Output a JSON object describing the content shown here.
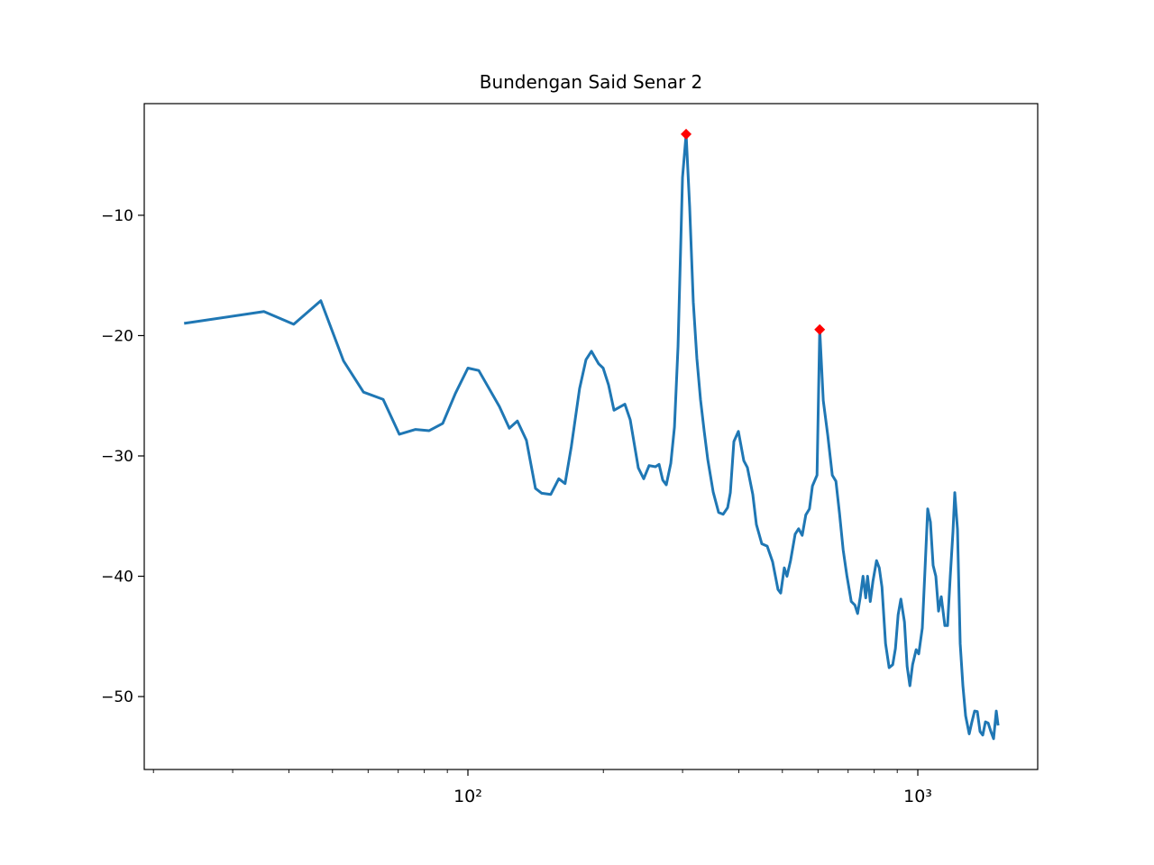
{
  "chart_data": {
    "type": "line",
    "title": "Bundengan Said Senar 2",
    "xscale": "log",
    "xlim": [
      19.08,
      1847
    ],
    "ylim": [
      -56.06,
      -0.72
    ],
    "xticks": [
      {
        "value": 100,
        "label": "10²"
      },
      {
        "value": 1000,
        "label": "10³"
      }
    ],
    "xminorticks": [
      20,
      30,
      40,
      50,
      60,
      70,
      80,
      90,
      200,
      300,
      400,
      500,
      600,
      700,
      800,
      900
    ],
    "yticks": [
      {
        "value": -50,
        "label": "−50"
      },
      {
        "value": -40,
        "label": "−40"
      },
      {
        "value": -30,
        "label": "−30"
      },
      {
        "value": -20,
        "label": "−20"
      },
      {
        "value": -10,
        "label": "−10"
      }
    ],
    "series": [
      {
        "color": "#1f77b4",
        "style": "line",
        "x": [
          23.4,
          35.2,
          41.0,
          47.1,
          52.9,
          58.6,
          64.8,
          70.4,
          76.5,
          82.0,
          87.9,
          93.8,
          100,
          105.7,
          117.5,
          123.6,
          128.8,
          134.9,
          141.3,
          145.9,
          152.8,
          159.2,
          164.4,
          169.8,
          177.1,
          183.0,
          188.2,
          195.3,
          199.8,
          205.4,
          211.2,
          223.3,
          229.5,
          239.2,
          245.9,
          252.8,
          261.1,
          266.0,
          271.0,
          276.0,
          282.5,
          287.8,
          293.1,
          299.9,
          305.5,
          311.1,
          316.9,
          322.8,
          328.8,
          335.0,
          341.3,
          350.9,
          360.8,
          369.2,
          377.8,
          383.1,
          390.1,
          399.2,
          410.4,
          418.0,
          429.7,
          437.7,
          450.0,
          462.6,
          475.6,
          488.9,
          495.7,
          504.9,
          511.9,
          521.4,
          533.8,
          543.3,
          553.4,
          563.7,
          574.3,
          583.1,
          597.0,
          605.3,
          616.4,
          630.8,
          645.5,
          657.6,
          669.9,
          682.4,
          695.2,
          711.4,
          724.7,
          734.8,
          745.1,
          755.5,
          766.1,
          773.2,
          784.0,
          794.9,
          809.6,
          820.9,
          832.4,
          847.8,
          863.5,
          879.5,
          891.8,
          904.2,
          916.9,
          933.9,
          946.9,
          960.2,
          973.6,
          991.6,
          1004.6,
          1023.3,
          1037.6,
          1052.0,
          1066.7,
          1081.5,
          1096.6,
          1111.9,
          1127.4,
          1148.4,
          1164.4,
          1180.6,
          1197.1,
          1208.2,
          1225.1,
          1242.2,
          1259.5,
          1277.1,
          1300.9,
          1319.0,
          1337.4,
          1356.1,
          1375.0,
          1394.2,
          1413.6,
          1433.4,
          1453.4,
          1473.7,
          1494.2,
          1508.1
        ],
        "values": [
          -18.98,
          -18.0,
          -19.06,
          -17.1,
          -22.1,
          -24.7,
          -25.3,
          -28.2,
          -27.8,
          -27.9,
          -27.3,
          -24.8,
          -22.7,
          -22.9,
          -25.9,
          -27.7,
          -27.1,
          -28.7,
          -32.7,
          -33.1,
          -33.2,
          -31.9,
          -32.3,
          -29.2,
          -24.4,
          -22.0,
          -21.3,
          -22.35,
          -22.7,
          -24.1,
          -26.2,
          -25.7,
          -27.0,
          -31.0,
          -31.9,
          -30.8,
          -30.9,
          -30.7,
          -32.0,
          -32.4,
          -30.6,
          -27.6,
          -20.9,
          -6.86,
          -3.26,
          -9.33,
          -17.2,
          -21.9,
          -25.3,
          -27.9,
          -30.3,
          -33.0,
          -34.7,
          -34.85,
          -34.3,
          -33.05,
          -28.8,
          -27.96,
          -30.4,
          -30.96,
          -33.2,
          -35.7,
          -37.3,
          -37.5,
          -38.8,
          -41.1,
          -41.4,
          -39.3,
          -40.0,
          -38.7,
          -36.5,
          -36.05,
          -36.6,
          -34.9,
          -34.4,
          -32.5,
          -31.6,
          -19.5,
          -25.4,
          -28.3,
          -31.6,
          -32.1,
          -34.8,
          -37.8,
          -39.9,
          -42.1,
          -42.4,
          -43.1,
          -41.7,
          -40.0,
          -41.8,
          -40.0,
          -42.1,
          -40.4,
          -38.7,
          -39.3,
          -40.9,
          -45.6,
          -47.6,
          -47.35,
          -46.0,
          -43.2,
          -41.9,
          -43.8,
          -47.5,
          -49.1,
          -47.35,
          -46.1,
          -46.45,
          -44.3,
          -39.4,
          -34.4,
          -35.5,
          -39.1,
          -40.0,
          -42.9,
          -41.7,
          -44.1,
          -44.1,
          -40.0,
          -36.3,
          -33.05,
          -36.1,
          -45.6,
          -49.1,
          -51.6,
          -53.1,
          -52.1,
          -51.2,
          -51.25,
          -52.9,
          -53.2,
          -52.1,
          -52.2,
          -52.9,
          -53.5,
          -51.2,
          -52.4
        ]
      },
      {
        "color": "#ff0000",
        "style": "marker",
        "x": [
          305.5,
          605.3
        ],
        "values": [
          -3.26,
          -19.5
        ]
      }
    ]
  }
}
